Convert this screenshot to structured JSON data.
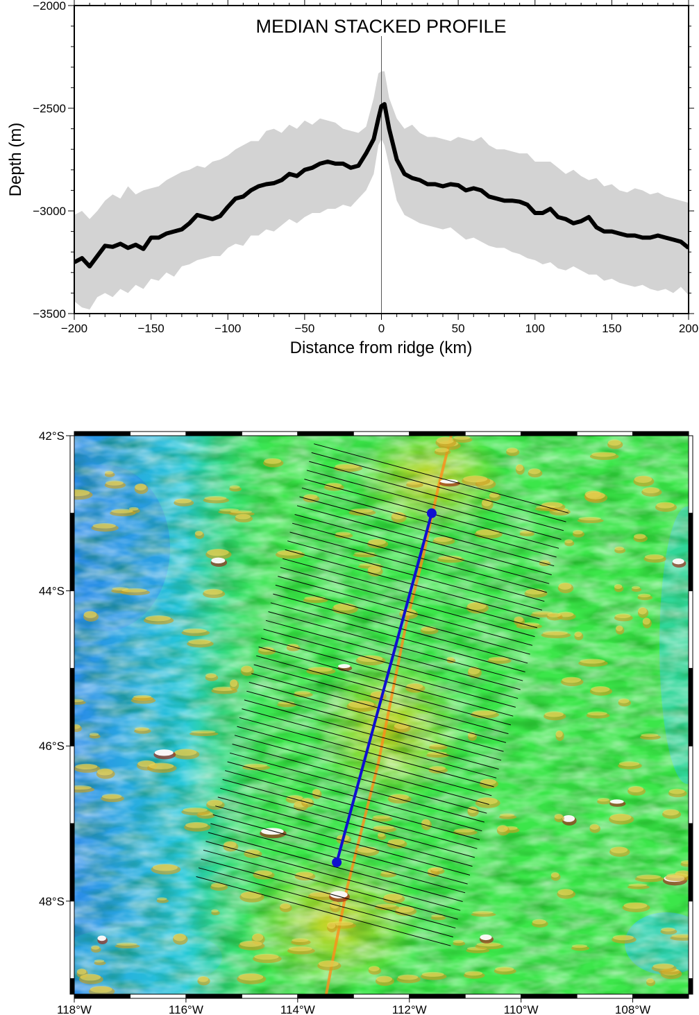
{
  "chart_data": [
    {
      "type": "line",
      "title": "MEDIAN STACKED PROFILE",
      "xlabel": "Distance from ridge (km)",
      "ylabel": "Depth (m)",
      "xlim": [
        -200,
        200
      ],
      "ylim": [
        -3500,
        -2000
      ],
      "xticks": [
        -200,
        -150,
        -100,
        -50,
        0,
        50,
        100,
        150,
        200
      ],
      "xtick_labels": [
        "−200",
        "−150",
        "−100",
        "−50",
        "0",
        "50",
        "100",
        "150",
        "200"
      ],
      "yticks": [
        -3500,
        -3000,
        -2500,
        -2000
      ],
      "ytick_labels": [
        "−3500",
        "−3000",
        "−2500",
        "−2000"
      ],
      "grid": false,
      "legend": "none",
      "reference_line_x": 0,
      "series": [
        {
          "role": "median",
          "color": "#000000",
          "x": [
            -200,
            -195,
            -190,
            -185,
            -180,
            -175,
            -170,
            -165,
            -160,
            -155,
            -150,
            -145,
            -140,
            -135,
            -130,
            -125,
            -120,
            -115,
            -110,
            -105,
            -100,
            -95,
            -90,
            -85,
            -80,
            -75,
            -70,
            -65,
            -60,
            -55,
            -50,
            -45,
            -40,
            -35,
            -30,
            -25,
            -20,
            -15,
            -10,
            -5,
            -2,
            0,
            2,
            5,
            10,
            15,
            20,
            25,
            30,
            35,
            40,
            45,
            50,
            55,
            60,
            65,
            70,
            75,
            80,
            85,
            90,
            95,
            100,
            105,
            110,
            115,
            120,
            125,
            130,
            135,
            140,
            145,
            150,
            155,
            160,
            165,
            170,
            175,
            180,
            185,
            190,
            195,
            200
          ],
          "y": [
            -3250,
            -3230,
            -3270,
            -3220,
            -3170,
            -3175,
            -3160,
            -3180,
            -3165,
            -3185,
            -3130,
            -3130,
            -3110,
            -3100,
            -3090,
            -3060,
            -3020,
            -3030,
            -3040,
            -3025,
            -2980,
            -2940,
            -2930,
            -2900,
            -2880,
            -2870,
            -2865,
            -2850,
            -2820,
            -2830,
            -2800,
            -2790,
            -2770,
            -2760,
            -2770,
            -2770,
            -2790,
            -2780,
            -2720,
            -2650,
            -2550,
            -2490,
            -2480,
            -2600,
            -2750,
            -2820,
            -2840,
            -2850,
            -2870,
            -2870,
            -2880,
            -2870,
            -2875,
            -2900,
            -2890,
            -2900,
            -2930,
            -2940,
            -2950,
            -2950,
            -2955,
            -2970,
            -3010,
            -3010,
            -2990,
            -3030,
            -3040,
            -3060,
            -3050,
            -3030,
            -3080,
            -3100,
            -3100,
            -3110,
            -3120,
            -3120,
            -3130,
            -3130,
            -3120,
            -3130,
            -3140,
            -3150,
            -3180
          ]
        },
        {
          "role": "range-upper",
          "color": "#d3d3d3",
          "x": [
            -200,
            -195,
            -190,
            -185,
            -180,
            -175,
            -170,
            -165,
            -160,
            -155,
            -150,
            -145,
            -140,
            -135,
            -130,
            -125,
            -120,
            -115,
            -110,
            -105,
            -100,
            -95,
            -90,
            -85,
            -80,
            -75,
            -70,
            -65,
            -60,
            -55,
            -50,
            -45,
            -40,
            -35,
            -30,
            -25,
            -20,
            -15,
            -10,
            -5,
            -2,
            0,
            2,
            5,
            10,
            15,
            20,
            25,
            30,
            35,
            40,
            45,
            50,
            55,
            60,
            65,
            70,
            75,
            80,
            85,
            90,
            95,
            100,
            105,
            110,
            115,
            120,
            125,
            130,
            135,
            140,
            145,
            150,
            155,
            160,
            165,
            170,
            175,
            180,
            185,
            190,
            195,
            200
          ],
          "y": [
            -3020,
            -3000,
            -3040,
            -3000,
            -2950,
            -2920,
            -2940,
            -2880,
            -2920,
            -2900,
            -2890,
            -2880,
            -2850,
            -2830,
            -2810,
            -2800,
            -2780,
            -2790,
            -2760,
            -2750,
            -2730,
            -2700,
            -2680,
            -2660,
            -2660,
            -2610,
            -2600,
            -2620,
            -2580,
            -2600,
            -2560,
            -2580,
            -2550,
            -2560,
            -2570,
            -2600,
            -2610,
            -2620,
            -2590,
            -2450,
            -2330,
            -2320,
            -2320,
            -2450,
            -2550,
            -2600,
            -2580,
            -2620,
            -2640,
            -2640,
            -2650,
            -2660,
            -2640,
            -2650,
            -2660,
            -2640,
            -2680,
            -2700,
            -2700,
            -2710,
            -2720,
            -2720,
            -2760,
            -2760,
            -2760,
            -2790,
            -2820,
            -2800,
            -2830,
            -2850,
            -2840,
            -2880,
            -2870,
            -2900,
            -2910,
            -2890,
            -2900,
            -2920,
            -2910,
            -2930,
            -2940,
            -2950,
            -2960
          ]
        },
        {
          "role": "range-lower",
          "color": "#d3d3d3",
          "x": [
            -200,
            -195,
            -190,
            -185,
            -180,
            -175,
            -170,
            -165,
            -160,
            -155,
            -150,
            -145,
            -140,
            -135,
            -130,
            -125,
            -120,
            -115,
            -110,
            -105,
            -100,
            -95,
            -90,
            -85,
            -80,
            -75,
            -70,
            -65,
            -60,
            -55,
            -50,
            -45,
            -40,
            -35,
            -30,
            -25,
            -20,
            -15,
            -10,
            -5,
            -2,
            0,
            2,
            5,
            10,
            15,
            20,
            25,
            30,
            35,
            40,
            45,
            50,
            55,
            60,
            65,
            70,
            75,
            80,
            85,
            90,
            95,
            100,
            105,
            110,
            115,
            120,
            125,
            130,
            135,
            140,
            145,
            150,
            155,
            160,
            165,
            170,
            175,
            180,
            185,
            190,
            195,
            200
          ],
          "y": [
            -3440,
            -3470,
            -3480,
            -3420,
            -3400,
            -3420,
            -3380,
            -3400,
            -3360,
            -3380,
            -3330,
            -3340,
            -3300,
            -3320,
            -3270,
            -3260,
            -3240,
            -3230,
            -3220,
            -3220,
            -3180,
            -3160,
            -3170,
            -3120,
            -3120,
            -3090,
            -3100,
            -3070,
            -3040,
            -3060,
            -3030,
            -3010,
            -3010,
            -2990,
            -2990,
            -2970,
            -2980,
            -2940,
            -2900,
            -2820,
            -2680,
            -2650,
            -2680,
            -2780,
            -2950,
            -3020,
            -3040,
            -3060,
            -3070,
            -3080,
            -3090,
            -3080,
            -3110,
            -3140,
            -3130,
            -3150,
            -3170,
            -3180,
            -3180,
            -3200,
            -3210,
            -3230,
            -3240,
            -3260,
            -3250,
            -3280,
            -3290,
            -3270,
            -3290,
            -3310,
            -3310,
            -3340,
            -3330,
            -3350,
            -3360,
            -3370,
            -3360,
            -3380,
            -3390,
            -3380,
            -3400,
            -3370,
            -3410
          ]
        }
      ]
    },
    {
      "type": "map",
      "xtick_labels": [
        "118°W",
        "116°W",
        "114°W",
        "112°W",
        "110°W",
        "108°W"
      ],
      "ytick_labels": [
        "42°S",
        "44°S",
        "46°S",
        "48°S"
      ],
      "xlim": [
        -118,
        -107
      ],
      "ylim": [
        -49.2,
        -42
      ],
      "profile_line": {
        "color": "#1010d0",
        "start_lon": -111.6,
        "start_lat": -43.0,
        "end_lon": -113.3,
        "end_lat": -47.5
      },
      "cross_profiles": {
        "count": 50,
        "color": "#000000",
        "half_length_km": 200
      },
      "ridge_axis_color": "#ff8c1a",
      "colors": {
        "deep": "#2a8be8",
        "mid_deep": "#26c8d8",
        "shallow": "#3ce64a",
        "crest": "#e8d020"
      }
    }
  ]
}
